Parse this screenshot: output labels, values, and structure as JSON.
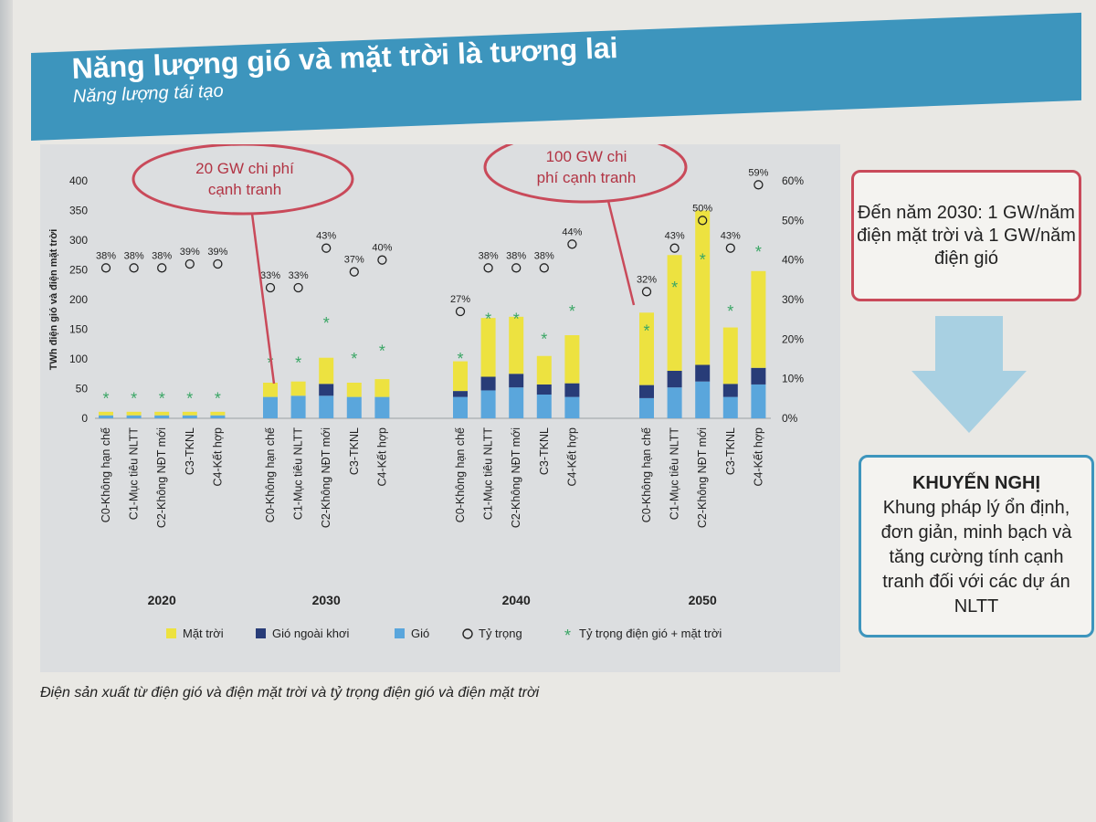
{
  "header": {
    "title": "Năng lượng gió và mặt trời là tương lai",
    "subtitle": "Năng lượng tái tạo"
  },
  "chart_data": {
    "type": "bar",
    "ylabel": "TWh điện gió và điện mặt trời",
    "ylim": [
      0,
      400
    ],
    "yticks": [
      0,
      50,
      100,
      150,
      200,
      250,
      300,
      350,
      400
    ],
    "y2lim": [
      0,
      60
    ],
    "y2ticks": [
      "0%",
      "10%",
      "20%",
      "30%",
      "40%",
      "50%",
      "60%"
    ],
    "groups": [
      "2020",
      "2030",
      "2040",
      "2050"
    ],
    "scenarios": [
      "C0-Không hạn chế",
      "C1-Mục tiêu NLTT",
      "C2-Không NĐT mới",
      "C3-TKNL",
      "C4-Kết hợp"
    ],
    "series": [
      {
        "name": "Gió",
        "color": "#5aa6dc",
        "values": [
          [
            5,
            5,
            5,
            5,
            5
          ],
          [
            36,
            38,
            38,
            36,
            36
          ],
          [
            36,
            47,
            52,
            40,
            36
          ],
          [
            34,
            52,
            62,
            36,
            57
          ]
        ]
      },
      {
        "name": "Gió ngoài khơi",
        "color": "#283c78",
        "values": [
          [
            0,
            0,
            0,
            0,
            0
          ],
          [
            0,
            0,
            20,
            0,
            0
          ],
          [
            10,
            23,
            23,
            17,
            23
          ],
          [
            22,
            28,
            28,
            22,
            28
          ]
        ]
      },
      {
        "name": "Mặt trời",
        "color": "#ede240",
        "values": [
          [
            6,
            6,
            6,
            6,
            6
          ],
          [
            24,
            24,
            44,
            24,
            30
          ],
          [
            50,
            99,
            96,
            48,
            81
          ],
          [
            122,
            195,
            260,
            95,
            163
          ]
        ]
      }
    ],
    "share_labels": [
      [
        "38%",
        "38%",
        "38%",
        "39%",
        "39%"
      ],
      [
        "33%",
        "33%",
        "43%",
        "37%",
        "40%"
      ],
      [
        "27%",
        "38%",
        "38%",
        "38%",
        "44%"
      ],
      [
        "32%",
        "43%",
        "50%",
        "43%",
        "59%"
      ]
    ],
    "share_values": [
      [
        38,
        38,
        38,
        39,
        39
      ],
      [
        33,
        33,
        43,
        37,
        40
      ],
      [
        27,
        38,
        38,
        38,
        44
      ],
      [
        32,
        43,
        50,
        43,
        59
      ]
    ],
    "wind_solar_share": [
      [
        5,
        5,
        5,
        5,
        5
      ],
      [
        14,
        14,
        24,
        15,
        17
      ],
      [
        15,
        25,
        25,
        20,
        27
      ],
      [
        22,
        33,
        40,
        27,
        42
      ]
    ],
    "annotations": [
      "20 GW chi phí cạnh tranh",
      "100 GW chi phí cạnh tranh"
    ],
    "legend": [
      "Mặt trời",
      "Gió ngoài khơi",
      "Gió",
      "Tỷ trọng",
      "Tỷ trọng điện gió + mặt trời"
    ]
  },
  "callout": "Đến năm 2030: 1 GW/năm điện mặt trời và 1 GW/năm điện gió",
  "recommendation": {
    "title": "KHUYẾN NGHỊ",
    "body": "Khung pháp lý ổn định, đơn giản, minh bạch và tăng cường tính cạnh tranh đối với các dự án NLTT"
  },
  "caption": "Điện sản xuất từ điện gió và điện mặt trời và tỷ trọng điện gió và điện mặt trời",
  "colors": {
    "header": "#3d95bd",
    "callout_border": "#c94a5a",
    "star": "#3aa665"
  }
}
